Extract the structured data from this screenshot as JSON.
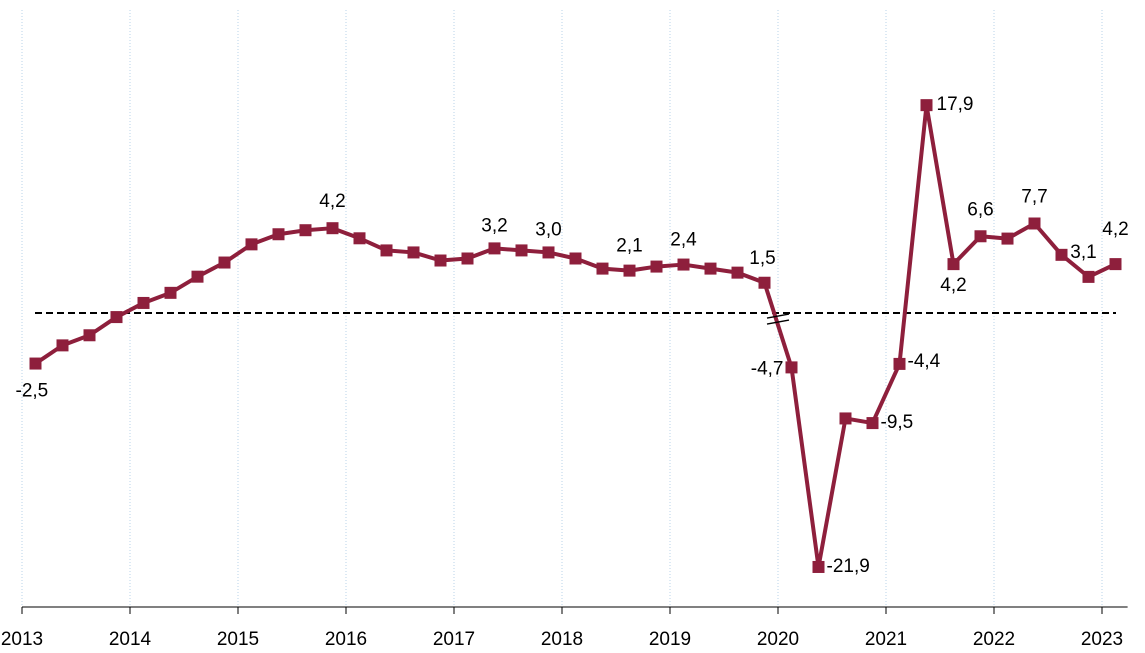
{
  "chart_data": {
    "type": "line",
    "xlim": [
      2013,
      2023.2
    ],
    "xticks": [
      2013,
      2014,
      2015,
      2016,
      2017,
      2018,
      2019,
      2020,
      2021,
      2022,
      2023
    ],
    "ylim": [
      -14.55,
      15
    ],
    "y2lim": [
      -25.35,
      26.1
    ],
    "hline": 0,
    "grid": true,
    "axis_break": true,
    "series": [
      {
        "color": "#8e1f3c",
        "axis": "y",
        "x": [
          2013.125,
          2013.375,
          2013.625,
          2013.875,
          2014.125,
          2014.375,
          2014.625,
          2014.875,
          2015.125,
          2015.375,
          2015.625,
          2015.875,
          2016.125,
          2016.375,
          2016.625,
          2016.875,
          2017.125,
          2017.375,
          2017.625,
          2017.875,
          2018.125,
          2018.375,
          2018.625,
          2018.875,
          2019.125,
          2019.375,
          2019.625,
          2019.875
        ],
        "values": [
          -2.5,
          -1.6,
          -1.1,
          -0.2,
          0.5,
          1.0,
          1.8,
          2.5,
          3.4,
          3.9,
          4.1,
          4.2,
          3.7,
          3.1,
          3.0,
          2.6,
          2.7,
          3.2,
          3.1,
          3.0,
          2.7,
          2.2,
          2.1,
          2.3,
          2.4,
          2.2,
          2.0,
          1.5
        ],
        "value_labels": [
          "-2,5",
          null,
          null,
          null,
          null,
          null,
          null,
          null,
          null,
          null,
          null,
          "4,2",
          null,
          null,
          null,
          null,
          null,
          "3,2",
          null,
          "3,0",
          null,
          null,
          "2,1",
          null,
          "2,4",
          null,
          null,
          "1,5"
        ]
      },
      {
        "color": "#8e1f3c",
        "axis": "y2",
        "x": [
          2020.125,
          2020.375,
          2020.625,
          2020.875,
          2021.125,
          2021.375,
          2021.625,
          2021.875,
          2022.125,
          2022.375,
          2022.625,
          2022.875,
          2023.125
        ],
        "values": [
          -4.7,
          -21.9,
          -9.1,
          -9.5,
          -4.4,
          17.9,
          4.2,
          6.6,
          6.4,
          7.7,
          5.0,
          3.1,
          4.2
        ],
        "value_labels": [
          "-4,7",
          "-21,9",
          null,
          "-9,5",
          "-4,4",
          "17,9",
          "4,2",
          "6,6",
          null,
          "7,7",
          null,
          "3,1",
          "4,2"
        ]
      }
    ]
  }
}
